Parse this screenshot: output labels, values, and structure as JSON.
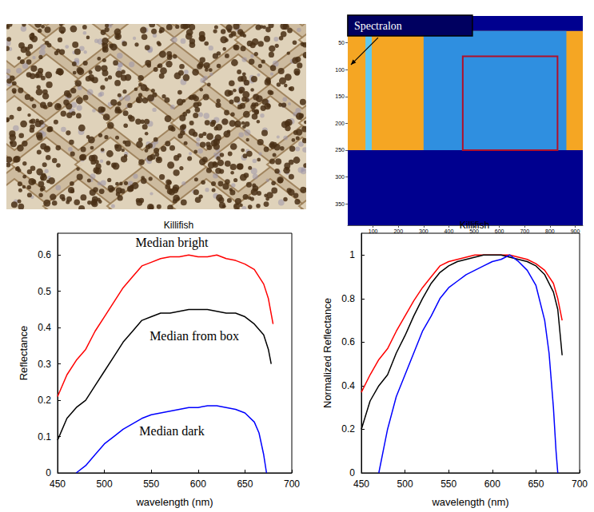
{
  "chart_data": [
    {
      "type": "image",
      "tick_labels": false
    },
    {
      "type": "image",
      "xlim": [
        0,
        930
      ],
      "ylim": [
        390,
        0
      ],
      "xticks": [
        100,
        200,
        300,
        400,
        500,
        600,
        700,
        800,
        900
      ],
      "yticks": [
        50,
        100,
        150,
        200,
        250,
        300,
        350
      ],
      "regions": [
        {
          "x": [
            0,
            930
          ],
          "y": [
            0,
            390
          ],
          "color": "#00008f"
        },
        {
          "x": [
            0,
            930
          ],
          "y": [
            28,
            250
          ],
          "color": "#f5a623"
        },
        {
          "x": [
            70,
            95
          ],
          "y": [
            28,
            250
          ],
          "color": "#5fc8f0"
        },
        {
          "x": [
            300,
            865
          ],
          "y": [
            28,
            250
          ],
          "color": "#2f8fe0"
        }
      ],
      "box": {
        "x": [
          455,
          830
        ],
        "y": [
          75,
          250
        ],
        "color": "#b0102a"
      },
      "annotations": [
        {
          "text": "Spectralon",
          "x": 25,
          "y": 18
        }
      ]
    },
    {
      "type": "line",
      "title": "Killifish",
      "xlabel": "wavelength (nm)",
      "ylabel": "Reflectance",
      "xlim": [
        450,
        700
      ],
      "ylim": [
        0,
        0.66
      ],
      "xticks": [
        450,
        500,
        550,
        600,
        650,
        700
      ],
      "yticks": [
        0,
        0.1,
        0.2,
        0.3,
        0.4,
        0.5,
        0.6
      ],
      "grid": false,
      "series": [
        {
          "color": "#ff0000",
          "x": [
            450,
            460,
            470,
            480,
            490,
            500,
            510,
            520,
            530,
            540,
            550,
            560,
            570,
            580,
            590,
            600,
            610,
            620,
            630,
            640,
            650,
            660,
            670,
            675,
            680
          ],
          "values": [
            0.21,
            0.27,
            0.31,
            0.34,
            0.39,
            0.43,
            0.47,
            0.51,
            0.54,
            0.57,
            0.58,
            0.59,
            0.595,
            0.595,
            0.6,
            0.595,
            0.595,
            0.6,
            0.59,
            0.585,
            0.575,
            0.56,
            0.52,
            0.48,
            0.41
          ]
        },
        {
          "color": "#000000",
          "x": [
            450,
            460,
            470,
            480,
            490,
            500,
            510,
            520,
            530,
            540,
            550,
            560,
            570,
            580,
            590,
            600,
            610,
            620,
            630,
            640,
            650,
            660,
            670,
            675,
            678
          ],
          "values": [
            0.09,
            0.15,
            0.18,
            0.2,
            0.24,
            0.28,
            0.32,
            0.36,
            0.39,
            0.42,
            0.43,
            0.44,
            0.44,
            0.445,
            0.45,
            0.45,
            0.45,
            0.445,
            0.44,
            0.44,
            0.43,
            0.41,
            0.38,
            0.34,
            0.3
          ]
        },
        {
          "color": "#0000ff",
          "x": [
            470,
            480,
            490,
            500,
            510,
            520,
            530,
            540,
            550,
            560,
            570,
            580,
            590,
            600,
            610,
            620,
            630,
            640,
            650,
            660,
            665,
            670,
            673
          ],
          "values": [
            0,
            0.02,
            0.05,
            0.08,
            0.1,
            0.12,
            0.135,
            0.15,
            0.16,
            0.165,
            0.17,
            0.175,
            0.18,
            0.18,
            0.185,
            0.185,
            0.18,
            0.175,
            0.165,
            0.14,
            0.11,
            0.05,
            0
          ]
        }
      ],
      "annotations": [
        {
          "text": "Median bright",
          "x": 572,
          "y": 0.635
        },
        {
          "text": "Median from box",
          "x": 596,
          "y": 0.378
        },
        {
          "text": "Median dark",
          "x": 572,
          "y": 0.115
        }
      ]
    },
    {
      "type": "line",
      "title": "Killifish",
      "xlabel": "wavelength (nm)",
      "ylabel": "Normalized Reflectance",
      "xlim": [
        450,
        700
      ],
      "ylim": [
        0,
        1.1
      ],
      "xticks": [
        450,
        500,
        550,
        600,
        650,
        700
      ],
      "yticks": [
        0,
        0.2,
        0.4,
        0.6,
        0.8,
        1
      ],
      "grid": false,
      "series": [
        {
          "color": "#ff0000",
          "x": [
            450,
            460,
            470,
            480,
            490,
            500,
            510,
            520,
            530,
            540,
            550,
            560,
            570,
            580,
            590,
            600,
            610,
            620,
            630,
            640,
            650,
            660,
            670,
            675,
            680
          ],
          "values": [
            0.37,
            0.45,
            0.52,
            0.57,
            0.65,
            0.72,
            0.79,
            0.85,
            0.9,
            0.95,
            0.97,
            0.98,
            0.99,
            1,
            1,
            1,
            1,
            1,
            0.99,
            0.98,
            0.96,
            0.93,
            0.87,
            0.8,
            0.7
          ]
        },
        {
          "color": "#000000",
          "x": [
            450,
            460,
            470,
            480,
            490,
            500,
            510,
            520,
            530,
            540,
            550,
            560,
            570,
            580,
            590,
            600,
            610,
            620,
            630,
            640,
            650,
            660,
            670,
            675,
            680
          ],
          "values": [
            0.2,
            0.33,
            0.4,
            0.45,
            0.55,
            0.63,
            0.72,
            0.8,
            0.87,
            0.92,
            0.95,
            0.97,
            0.98,
            0.99,
            1,
            1,
            1,
            0.99,
            0.98,
            0.97,
            0.95,
            0.91,
            0.83,
            0.75,
            0.54
          ]
        },
        {
          "color": "#0000ff",
          "x": [
            470,
            475,
            480,
            490,
            500,
            510,
            520,
            530,
            540,
            550,
            560,
            570,
            580,
            590,
            600,
            610,
            620,
            630,
            640,
            650,
            660,
            665,
            670,
            673,
            675
          ],
          "values": [
            0,
            0.1,
            0.2,
            0.35,
            0.45,
            0.55,
            0.65,
            0.72,
            0.8,
            0.85,
            0.88,
            0.91,
            0.93,
            0.95,
            0.97,
            0.98,
            1,
            0.97,
            0.93,
            0.86,
            0.7,
            0.55,
            0.3,
            0.1,
            0
          ]
        }
      ]
    }
  ]
}
